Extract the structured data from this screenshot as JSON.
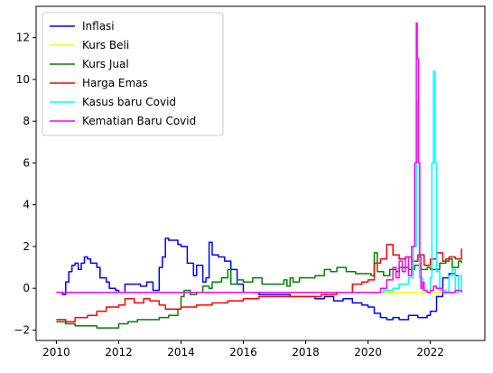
{
  "chart_data": {
    "type": "line",
    "xlim": [
      2009.35,
      2023.75
    ],
    "ylim": [
      -2.5,
      13.5
    ],
    "x_ticks": [
      2010,
      2012,
      2014,
      2016,
      2018,
      2020,
      2022
    ],
    "y_ticks": [
      -2,
      0,
      2,
      4,
      6,
      8,
      10,
      12
    ],
    "legend": "top-left",
    "grid": false,
    "series": [
      {
        "name": "Inflasi",
        "color": "#0000ff",
        "x": [
          2010.0,
          2010.2,
          2010.3,
          2010.4,
          2010.5,
          2010.6,
          2010.7,
          2010.8,
          2010.9,
          2011.0,
          2011.1,
          2011.3,
          2011.4,
          2011.6,
          2011.7,
          2011.9,
          2012.0,
          2012.2,
          2012.3,
          2012.5,
          2012.7,
          2012.9,
          2013.1,
          2013.3,
          2013.4,
          2013.5,
          2013.6,
          2013.9,
          2014.0,
          2014.2,
          2014.4,
          2014.5,
          2014.7,
          2014.8,
          2014.9,
          2015.0,
          2015.2,
          2015.4,
          2015.6,
          2015.8,
          2016.0,
          2016.5,
          2017.0,
          2017.5,
          2018.0,
          2018.3,
          2018.6,
          2018.9,
          2019.2,
          2019.5,
          2019.8,
          2020.0,
          2020.2,
          2020.4,
          2020.6,
          2020.8,
          2021.0,
          2021.3,
          2021.6,
          2021.9,
          2022.0,
          2022.2,
          2022.4,
          2022.6,
          2022.8,
          2023.0
        ],
        "y": [
          -0.2,
          -0.3,
          0.3,
          0.8,
          1.1,
          1.2,
          0.9,
          1.2,
          1.5,
          1.4,
          1.2,
          1.0,
          0.5,
          0.3,
          0.0,
          -0.1,
          -0.2,
          0.2,
          0.2,
          0.2,
          0.1,
          0.3,
          -0.1,
          1.0,
          1.5,
          2.4,
          2.3,
          2.1,
          2.0,
          1.2,
          0.6,
          1.1,
          0.3,
          0.5,
          2.2,
          1.6,
          1.5,
          1.3,
          0.9,
          0.2,
          -0.2,
          -0.3,
          -0.3,
          -0.4,
          -0.4,
          -0.5,
          -0.4,
          -0.6,
          -0.5,
          -0.7,
          -0.8,
          -0.9,
          -1.2,
          -1.4,
          -1.5,
          -1.4,
          -1.5,
          -1.3,
          -1.4,
          -1.3,
          -1.1,
          -0.4,
          0.5,
          0.7,
          0.6,
          0.6
        ]
      },
      {
        "name": "Kurs Beli",
        "color": "#ffff00",
        "x": [
          2010.0,
          2012.0,
          2014.0,
          2016.0,
          2018.0,
          2020.0,
          2022.0,
          2023.0
        ],
        "y": [
          -0.2,
          -0.2,
          -0.2,
          -0.2,
          -0.2,
          -0.2,
          -0.2,
          -0.2
        ]
      },
      {
        "name": "Kurs Jual",
        "color": "#008000",
        "x": [
          2010.0,
          2010.3,
          2010.6,
          2011.0,
          2011.3,
          2011.6,
          2012.0,
          2012.3,
          2012.6,
          2013.0,
          2013.3,
          2013.6,
          2013.9,
          2014.0,
          2014.1,
          2014.3,
          2014.5,
          2014.7,
          2014.9,
          2015.0,
          2015.3,
          2015.5,
          2015.6,
          2015.8,
          2016.0,
          2016.3,
          2016.6,
          2017.0,
          2017.3,
          2017.4,
          2017.5,
          2017.6,
          2017.8,
          2018.0,
          2018.3,
          2018.6,
          2018.8,
          2019.0,
          2019.3,
          2019.6,
          2019.9,
          2020.1,
          2020.2,
          2020.3,
          2020.5,
          2020.7,
          2020.9,
          2021.0,
          2021.3,
          2021.5,
          2021.7,
          2021.9,
          2022.0,
          2022.3,
          2022.5,
          2022.7,
          2022.9,
          2023.0
        ],
        "y": [
          -1.6,
          -1.7,
          -1.8,
          -1.8,
          -1.9,
          -1.9,
          -1.7,
          -1.6,
          -1.5,
          -1.5,
          -1.4,
          -1.3,
          -1.0,
          -0.4,
          -0.1,
          -0.3,
          -0.2,
          0.1,
          0.0,
          0.3,
          0.5,
          0.9,
          0.2,
          0.4,
          0.3,
          0.5,
          0.2,
          0.2,
          0.4,
          0.1,
          0.5,
          0.3,
          0.5,
          0.5,
          0.6,
          0.9,
          0.8,
          1.0,
          0.8,
          0.7,
          0.7,
          0.6,
          1.7,
          0.8,
          0.6,
          0.9,
          0.8,
          1.0,
          0.9,
          1.1,
          0.9,
          1.0,
          0.9,
          1.2,
          1.4,
          1.0,
          1.3,
          1.2
        ]
      },
      {
        "name": "Harga Emas",
        "color": "#ff0000",
        "x": [
          2010.0,
          2010.3,
          2010.6,
          2011.0,
          2011.3,
          2011.6,
          2012.0,
          2012.2,
          2012.5,
          2012.8,
          2013.0,
          2013.3,
          2013.5,
          2013.8,
          2014.0,
          2014.5,
          2015.0,
          2015.5,
          2016.0,
          2016.5,
          2017.0,
          2017.5,
          2018.0,
          2018.5,
          2019.0,
          2019.5,
          2019.8,
          2020.0,
          2020.2,
          2020.4,
          2020.6,
          2020.8,
          2021.0,
          2021.2,
          2021.4,
          2021.6,
          2021.8,
          2022.0,
          2022.2,
          2022.4,
          2022.6,
          2022.8,
          2023.0
        ],
        "y": [
          -1.5,
          -1.6,
          -1.4,
          -1.3,
          -1.1,
          -0.9,
          -0.8,
          -0.5,
          -0.7,
          -0.5,
          -0.6,
          -0.8,
          -1.0,
          -1.0,
          -0.9,
          -0.8,
          -0.7,
          -0.6,
          -0.5,
          -0.4,
          -0.4,
          -0.4,
          -0.4,
          -0.3,
          -0.2,
          0.2,
          0.3,
          0.4,
          1.2,
          1.4,
          2.1,
          1.6,
          1.4,
          1.5,
          1.3,
          1.6,
          1.1,
          1.4,
          1.7,
          1.3,
          1.5,
          1.4,
          1.9
        ]
      },
      {
        "name": "Kasus baru Covid",
        "color": "#00ffff",
        "x": [
          2010.0,
          2020.0,
          2020.2,
          2020.5,
          2020.8,
          2021.0,
          2021.3,
          2021.45,
          2021.55,
          2021.6,
          2021.65,
          2021.75,
          2021.9,
          2022.0,
          2022.05,
          2022.1,
          2022.15,
          2022.2,
          2022.3,
          2022.5,
          2022.6,
          2022.7,
          2022.8,
          2022.9,
          2023.0
        ],
        "y": [
          -0.2,
          -0.2,
          -0.2,
          -0.1,
          0.0,
          0.2,
          0.5,
          2.0,
          9.0,
          6.0,
          0.5,
          -0.1,
          -0.2,
          0.5,
          6.0,
          10.4,
          6.0,
          0.8,
          -0.1,
          -0.2,
          0.6,
          0.9,
          -0.2,
          0.6,
          -0.2
        ]
      },
      {
        "name": "Kematian Baru Covid",
        "color": "#ff00ff",
        "x": [
          2010.0,
          2020.0,
          2020.2,
          2020.4,
          2020.6,
          2020.8,
          2020.9,
          2021.0,
          2021.1,
          2021.2,
          2021.3,
          2021.4,
          2021.5,
          2021.55,
          2021.58,
          2021.62,
          2021.66,
          2021.7,
          2021.75,
          2021.8,
          2021.9,
          2022.0,
          2022.1,
          2022.2,
          2022.4,
          2022.6,
          2022.8,
          2023.0
        ],
        "y": [
          -0.2,
          -0.2,
          -0.2,
          0.0,
          0.4,
          1.0,
          0.5,
          1.3,
          0.8,
          1.5,
          0.6,
          2.0,
          6.0,
          12.7,
          11.0,
          6.0,
          1.5,
          0.0,
          0.3,
          -0.1,
          -0.2,
          -0.1,
          0.1,
          0.0,
          -0.2,
          -0.2,
          -0.1,
          -0.2
        ]
      }
    ]
  }
}
